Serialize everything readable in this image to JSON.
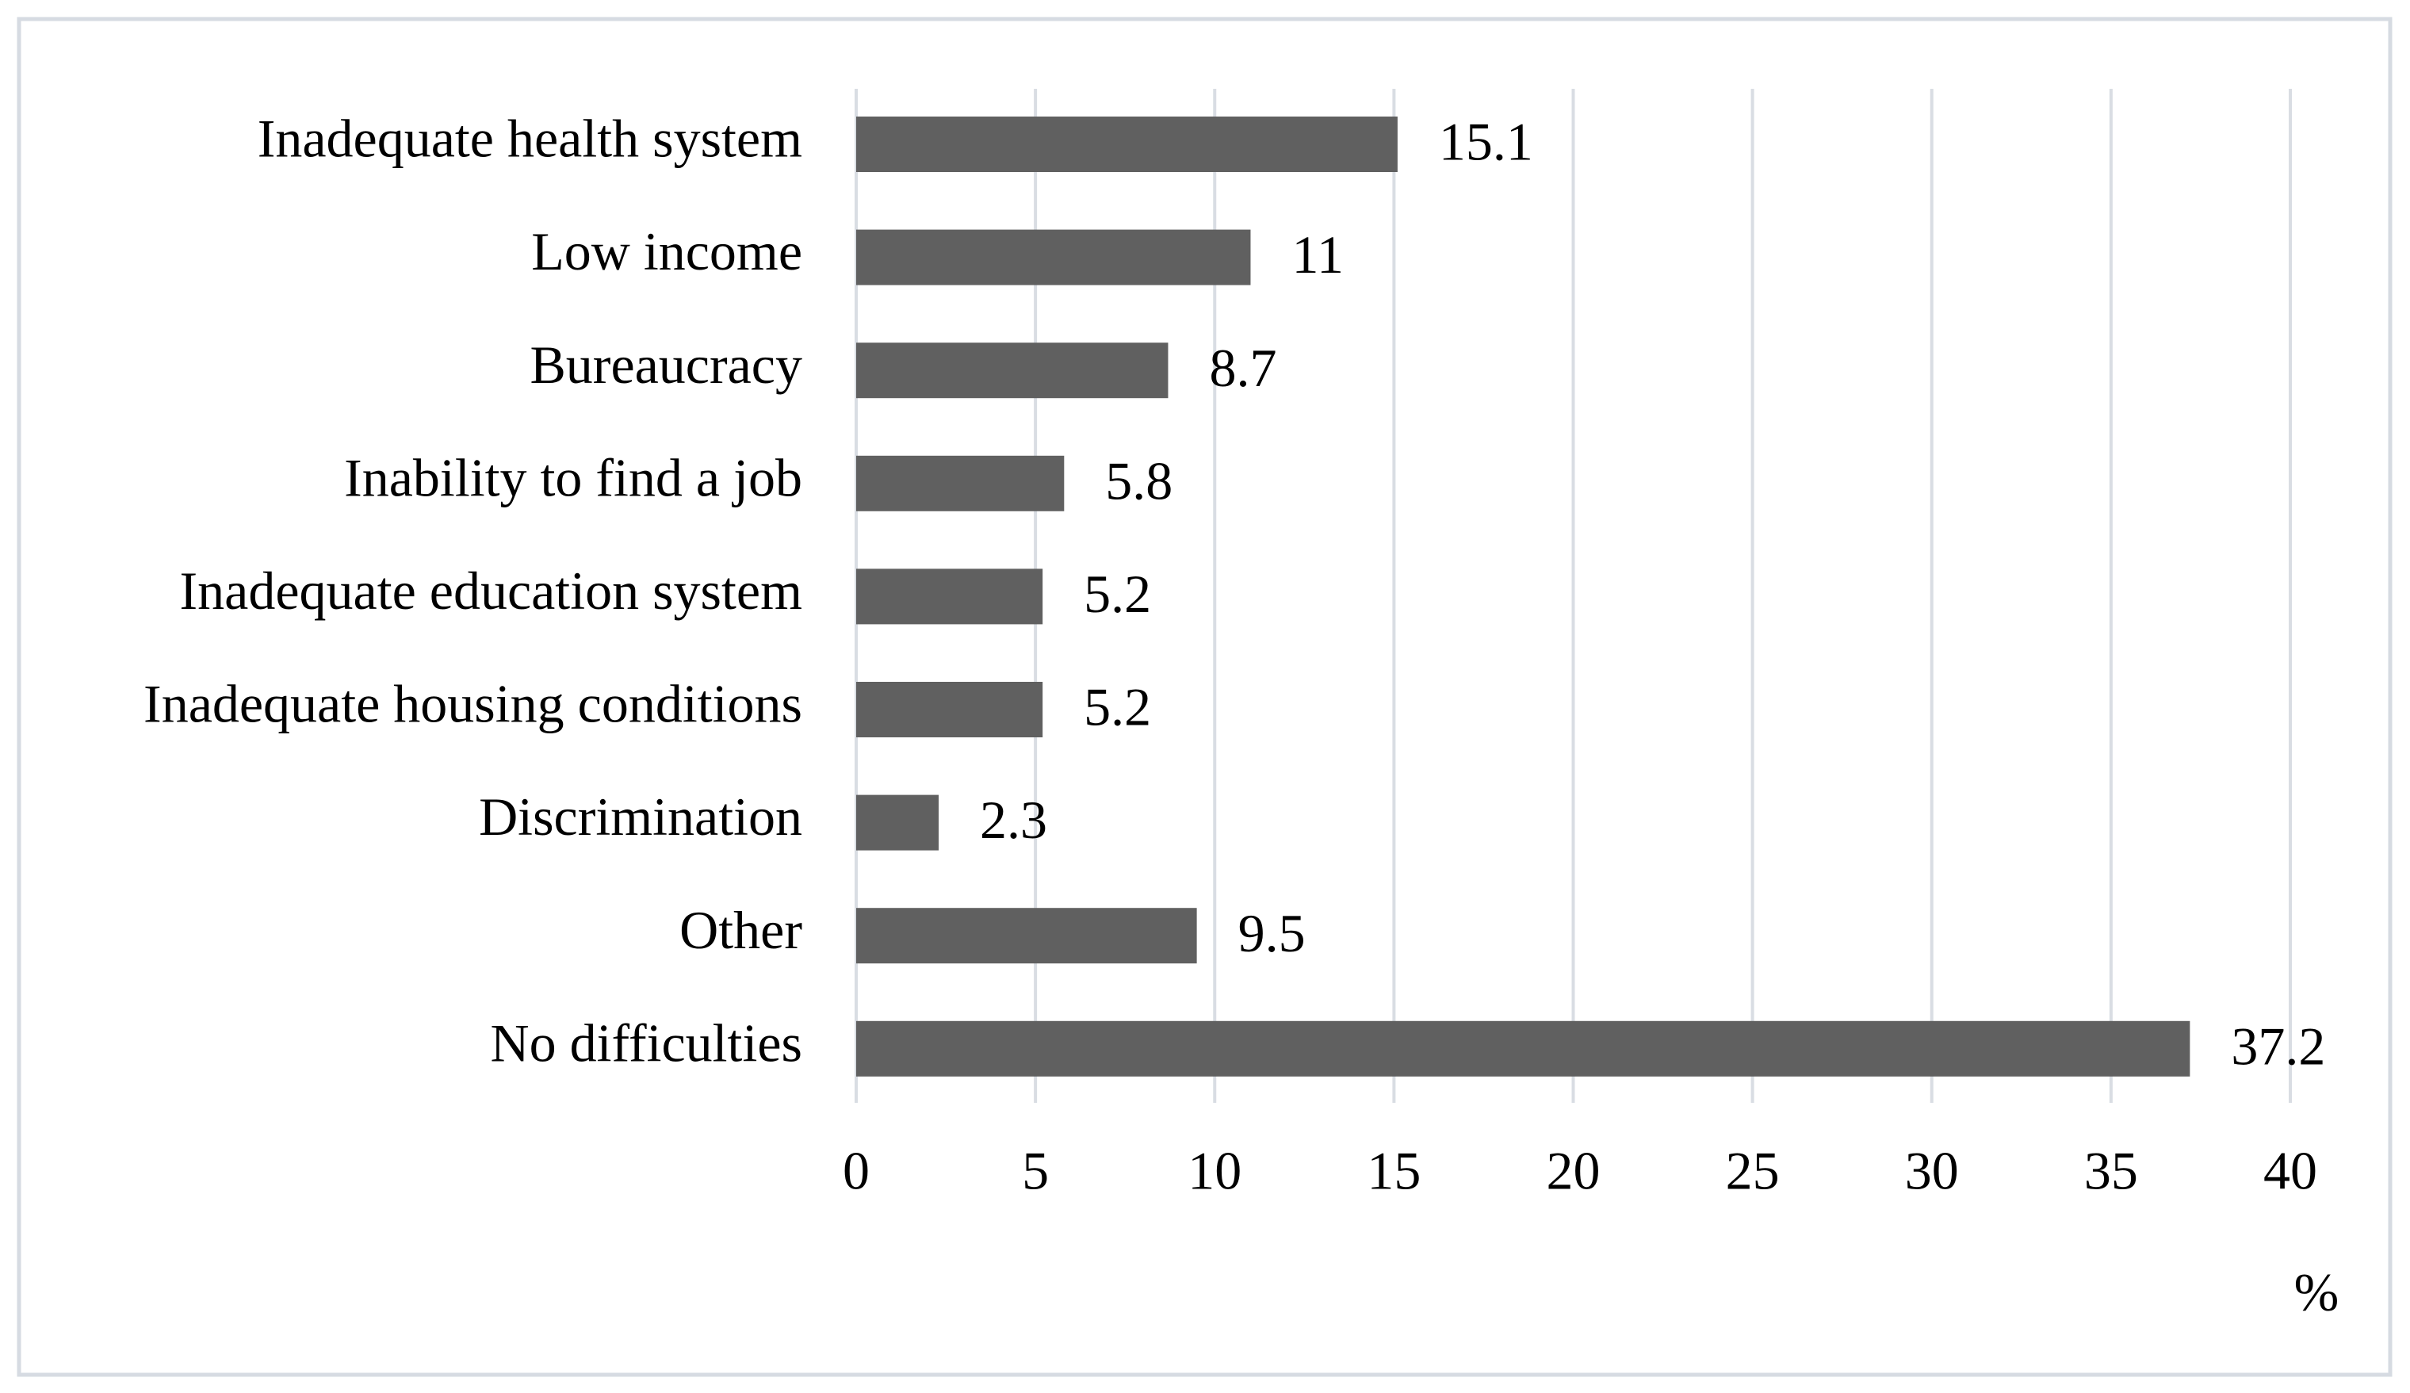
{
  "chart_data": {
    "type": "hbar",
    "categories": [
      "Inadequate health system",
      "Low income",
      "Bureaucracy",
      "Inability to find a job",
      "Inadequate education system",
      "Inadequate housing conditions",
      "Discrimination",
      "Other",
      "No difficulties"
    ],
    "values": [
      15.1,
      11,
      8.7,
      5.8,
      5.2,
      5.2,
      2.3,
      9.5,
      37.2
    ],
    "color": "#606060",
    "xlim": [
      0,
      40
    ],
    "xticks": [
      0,
      5,
      10,
      15,
      20,
      25,
      30,
      35,
      40
    ],
    "x_label": "%",
    "grid": true,
    "data_labels": true
  }
}
